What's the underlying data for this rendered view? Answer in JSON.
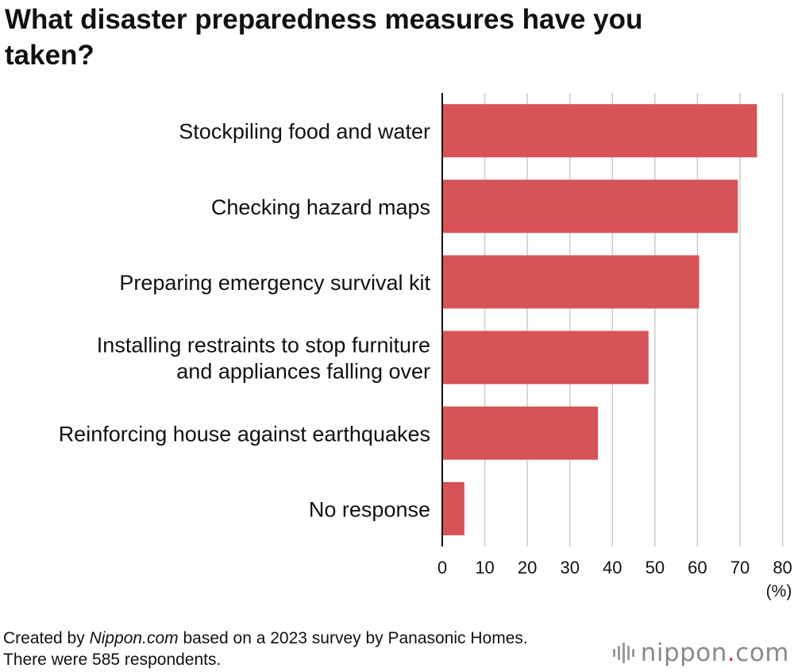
{
  "title": "What disaster preparedness measures have you taken?",
  "footer": {
    "prefix": "Created by ",
    "source_name": "Nippon.com",
    "suffix": " based on a 2023 survey by Panasonic Homes. There were 585 respondents."
  },
  "brand": {
    "name": "nippon",
    "dot": ".",
    "tld": "com"
  },
  "colors": {
    "bar": "#d85357",
    "grid": "#cccccc",
    "axis": "#111111",
    "brand_accent": "#d9353c"
  },
  "chart_data": {
    "type": "bar",
    "orientation": "horizontal",
    "title": "What disaster preparedness measures have you taken?",
    "categories": [
      [
        "Stockpiling food and water"
      ],
      [
        "Checking hazard maps"
      ],
      [
        "Preparing emergency survival kit"
      ],
      [
        "Installing restraints to stop furniture",
        "and appliances falling over"
      ],
      [
        "Reinforcing house against earthquakes"
      ],
      [
        "No response"
      ]
    ],
    "values": [
      74,
      69.5,
      60.4,
      48.5,
      36.6,
      5.2
    ],
    "xlim": [
      0,
      80
    ],
    "xticks": [
      "0",
      "10",
      "20",
      "30",
      "40",
      "50",
      "60",
      "70",
      "80"
    ],
    "xunit": "(%)",
    "grid": true,
    "legend": "none"
  }
}
